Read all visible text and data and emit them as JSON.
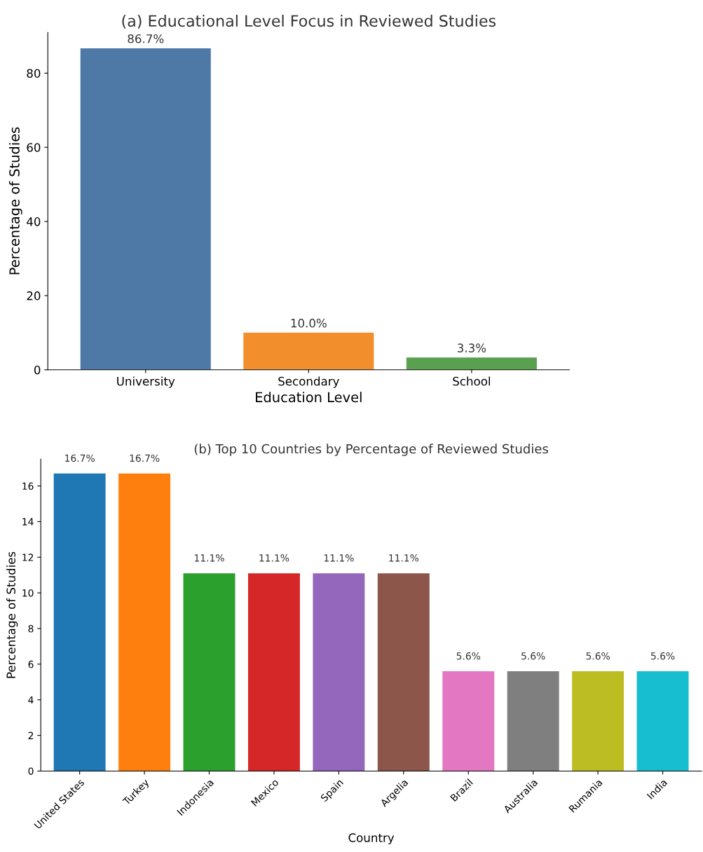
{
  "chart_data": [
    {
      "type": "bar",
      "title": "(a) Educational Level Focus in Reviewed Studies",
      "xlabel": "Education Level",
      "ylabel": "Percentage of Studies",
      "categories": [
        "University",
        "Secondary",
        "School"
      ],
      "values": [
        86.7,
        10.0,
        3.3
      ],
      "colors": [
        "#4e79a7",
        "#f28e2b",
        "#59a14f"
      ],
      "value_labels": [
        "86.7%",
        "10.0%",
        "3.3%"
      ],
      "ylim": [
        0,
        91
      ],
      "yticks": [
        0,
        20,
        40,
        60,
        80
      ],
      "grid": false,
      "legend": false
    },
    {
      "type": "bar",
      "title": "(b) Top 10 Countries by Percentage of Reviewed Studies",
      "xlabel": "Country",
      "ylabel": "Percentage of Studies",
      "categories": [
        "United States",
        "Turkey",
        "Indonesia",
        "Mexico",
        "Spain",
        "Argelia",
        "Brazil",
        "Australia",
        "Rumania",
        "India"
      ],
      "values": [
        16.7,
        16.7,
        11.1,
        11.1,
        11.1,
        11.1,
        5.6,
        5.6,
        5.6,
        5.6
      ],
      "colors": [
        "#1f77b4",
        "#ff7f0e",
        "#2ca02c",
        "#d62728",
        "#9467bd",
        "#8c564b",
        "#e377c2",
        "#7f7f7f",
        "#bcbd22",
        "#17becf"
      ],
      "value_labels": [
        "16.7%",
        "16.7%",
        "11.1%",
        "11.1%",
        "11.1%",
        "11.1%",
        "5.6%",
        "5.6%",
        "5.6%",
        "5.6%"
      ],
      "ylim": [
        0,
        17.5
      ],
      "yticks": [
        0,
        2,
        4,
        6,
        8,
        10,
        12,
        14,
        16
      ],
      "grid": false,
      "legend": false
    }
  ]
}
